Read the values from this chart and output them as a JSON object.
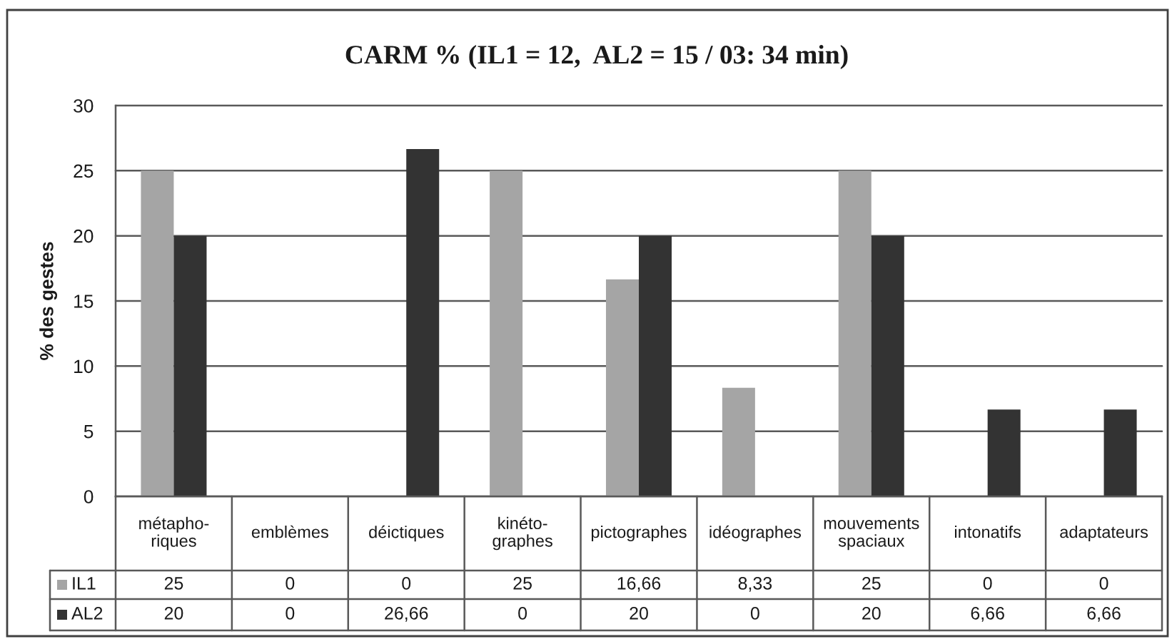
{
  "chart_data": {
    "type": "bar",
    "title": "CARM % (IL1 = 12,  AL2 = 15 / 03: 34 min)",
    "ylabel": "% des gestes",
    "categories": [
      "métapho-\nriques",
      "emblèmes",
      "déictiques",
      "kinéto-\ngraphes",
      "pictographes",
      "idéographes",
      "mouvements\nspaciaux",
      "intonatifs",
      "adaptateurs"
    ],
    "series": [
      {
        "name": "IL1",
        "color": "#a5a5a5",
        "values": [
          25,
          0,
          0,
          25,
          16.66,
          8.33,
          25,
          0,
          0
        ],
        "value_labels": [
          "25",
          "0",
          "0",
          "25",
          "16,66",
          "8,33",
          "25",
          "0",
          "0"
        ]
      },
      {
        "name": "AL2",
        "color": "#333333",
        "values": [
          20,
          0,
          26.66,
          0,
          20,
          0,
          20,
          6.66,
          6.66
        ],
        "value_labels": [
          "20",
          "0",
          "26,66",
          "0",
          "20",
          "0",
          "20",
          "6,66",
          "6,66"
        ]
      }
    ],
    "ylim": [
      0,
      30
    ],
    "yticks": [
      0,
      5,
      10,
      15,
      20,
      25,
      30
    ],
    "grid": "y",
    "legend": "bottom"
  }
}
